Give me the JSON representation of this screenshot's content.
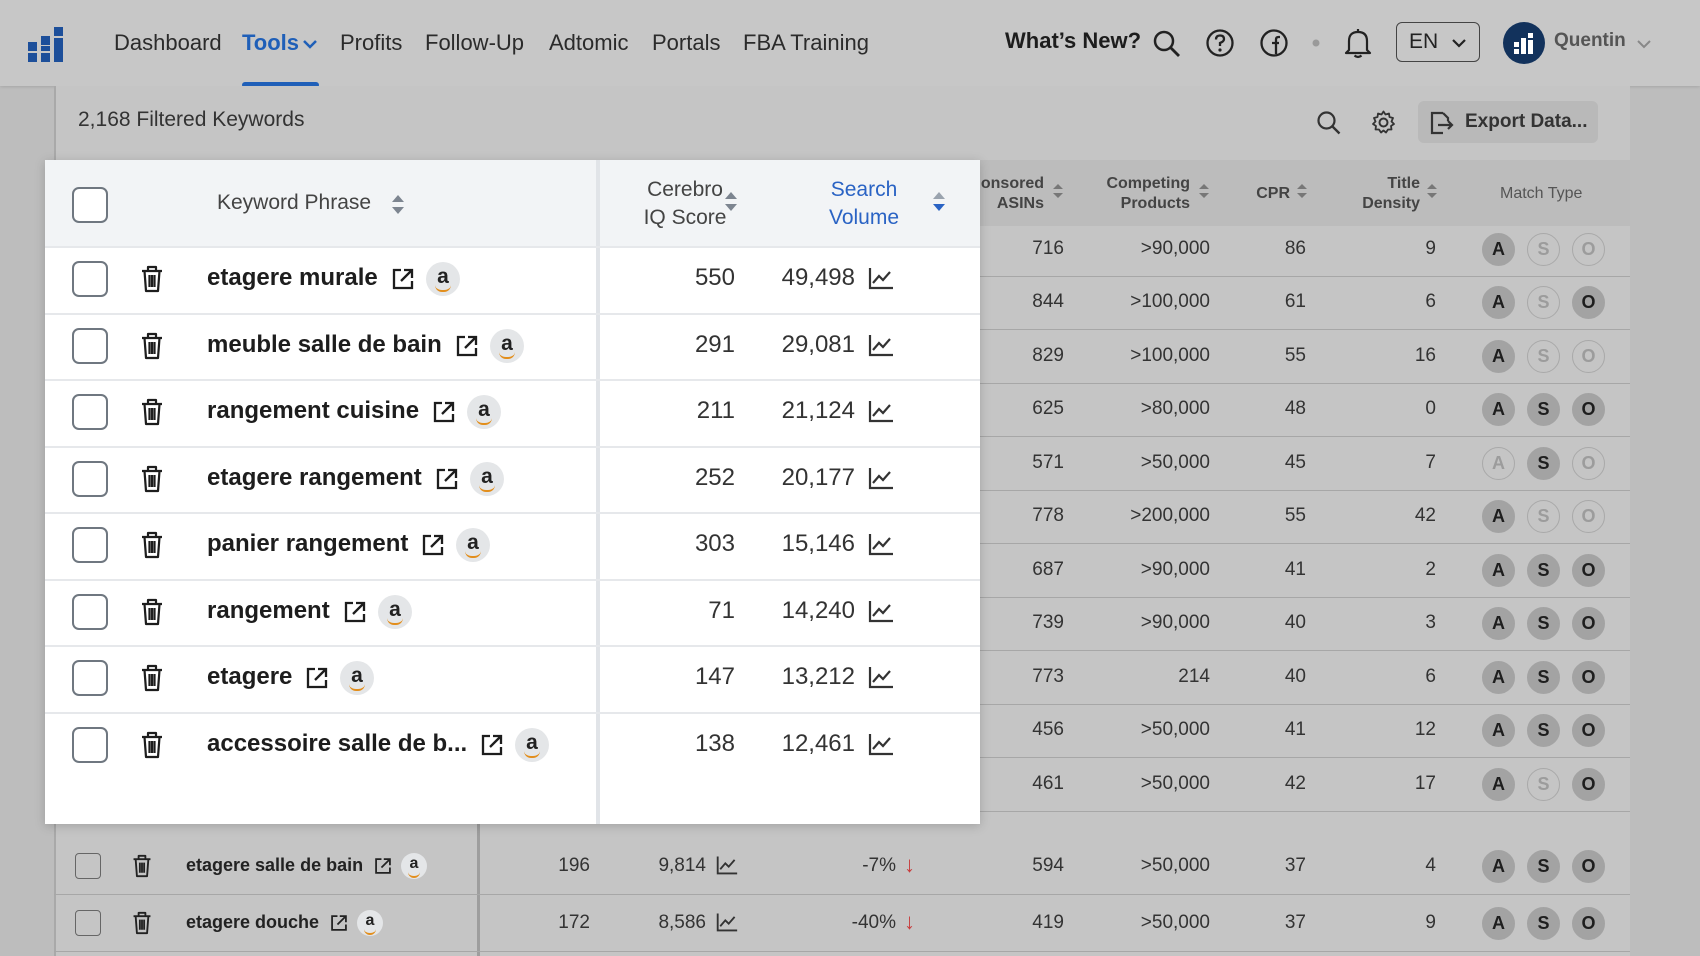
{
  "nav": {
    "items": [
      "Dashboard",
      "Tools",
      "Profits",
      "Follow-Up",
      "Adtomic",
      "Portals",
      "FBA Training"
    ],
    "active": "Tools",
    "whats_new": "What’s New?",
    "language": "EN",
    "user_name": "Quentin"
  },
  "toolbar": {
    "filtered_count": "2,168 Filtered Keywords",
    "export_label": "Export Data..."
  },
  "columns": {
    "keyword_phrase": "Keyword Phrase",
    "cerebro_iq_line1": "Cerebro",
    "cerebro_iq_line2": "IQ Score",
    "search_volume_line1": "Search",
    "search_volume_line2": "Volume",
    "sponsored_line1": "onsored",
    "sponsored_line2": "ASINs",
    "competing_line1": "Competing",
    "competing_line2": "Products",
    "cpr": "CPR",
    "title_density_line1": "Title",
    "title_density_line2": "Density",
    "match_type": "Match Type"
  },
  "highlighted_rows": [
    {
      "keyword": "etagere murale",
      "iq": "550",
      "volume": "49,498"
    },
    {
      "keyword": "meuble salle de bain",
      "iq": "291",
      "volume": "29,081"
    },
    {
      "keyword": "rangement cuisine",
      "iq": "211",
      "volume": "21,124"
    },
    {
      "keyword": "etagere rangement",
      "iq": "252",
      "volume": "20,177"
    },
    {
      "keyword": "panier rangement",
      "iq": "303",
      "volume": "15,146"
    },
    {
      "keyword": "rangement",
      "iq": "71",
      "volume": "14,240"
    },
    {
      "keyword": "etagere",
      "iq": "147",
      "volume": "13,212"
    },
    {
      "keyword": "accessoire salle de b...",
      "iq": "138",
      "volume": "12,461"
    }
  ],
  "background_rows": [
    {
      "sponsored": "716",
      "competing": ">90,000",
      "cpr": "86",
      "density": "9",
      "mt": [
        "on",
        "off",
        "off"
      ]
    },
    {
      "sponsored": "844",
      "competing": ">100,000",
      "cpr": "61",
      "density": "6",
      "mt": [
        "on",
        "off",
        "on"
      ]
    },
    {
      "sponsored": "829",
      "competing": ">100,000",
      "cpr": "55",
      "density": "16",
      "mt": [
        "on",
        "off",
        "off"
      ]
    },
    {
      "sponsored": "625",
      "competing": ">80,000",
      "cpr": "48",
      "density": "0",
      "mt": [
        "on",
        "on",
        "on"
      ]
    },
    {
      "sponsored": "571",
      "competing": ">50,000",
      "cpr": "45",
      "density": "7",
      "mt": [
        "off",
        "on",
        "off"
      ]
    },
    {
      "sponsored": "778",
      "competing": ">200,000",
      "cpr": "55",
      "density": "42",
      "mt": [
        "on",
        "off",
        "off"
      ]
    },
    {
      "sponsored": "687",
      "competing": ">90,000",
      "cpr": "41",
      "density": "2",
      "mt": [
        "on",
        "on",
        "on"
      ]
    },
    {
      "sponsored": "739",
      "competing": ">90,000",
      "cpr": "40",
      "density": "3",
      "mt": [
        "on",
        "on",
        "on"
      ]
    },
    {
      "sponsored": "773",
      "competing": "214",
      "cpr": "40",
      "density": "6",
      "mt": [
        "on",
        "on",
        "on"
      ]
    },
    {
      "sponsored": "456",
      "competing": ">50,000",
      "cpr": "41",
      "density": "12",
      "mt": [
        "on",
        "on",
        "on"
      ]
    },
    {
      "sponsored": "461",
      "competing": ">50,000",
      "cpr": "42",
      "density": "17",
      "mt": [
        "on",
        "off",
        "on"
      ]
    }
  ],
  "bottom_rows": [
    {
      "keyword": "etagere salle de bain",
      "iq": "196",
      "volume": "9,814",
      "trend": "-7%",
      "sponsored": "594",
      "competing": ">50,000",
      "cpr": "37",
      "density": "4",
      "mt": [
        "on",
        "on",
        "on"
      ]
    },
    {
      "keyword": "etagere douche",
      "iq": "172",
      "volume": "8,586",
      "trend": "-40%",
      "sponsored": "419",
      "competing": ">50,000",
      "cpr": "37",
      "density": "9",
      "mt": [
        "on",
        "on",
        "on"
      ]
    }
  ],
  "match_letters": [
    "A",
    "S",
    "O"
  ],
  "trend_down_glyph": "↓",
  "amazon_glyph": "a",
  "colors": {
    "accent": "#1f5fb8",
    "search_volume": "#2a63c4",
    "trend_down": "#c83c3c"
  }
}
